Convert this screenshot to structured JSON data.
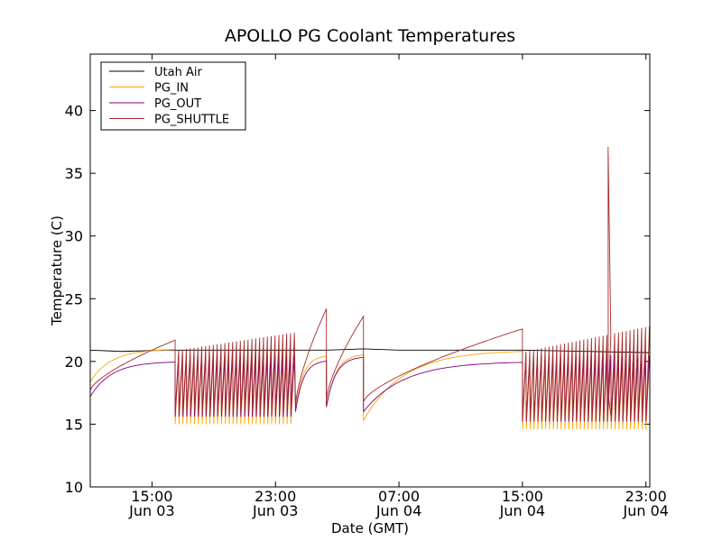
{
  "chart_data": {
    "type": "line",
    "title": "APOLLO PG Coolant Temperatures",
    "xlabel": "Date (GMT)",
    "ylabel": "Temperature (C)",
    "x_unit": "hours since Jun 03 00:00 GMT",
    "xlim": [
      11,
      47.25
    ],
    "ylim": [
      10,
      44.5
    ],
    "y_ticks": [
      10,
      15,
      20,
      25,
      30,
      35,
      40
    ],
    "x_ticks": [
      {
        "x": 15,
        "label1": "15:00",
        "label2": "Jun 03"
      },
      {
        "x": 23,
        "label1": "23:00",
        "label2": "Jun 03"
      },
      {
        "x": 31,
        "label1": "07:00",
        "label2": "Jun 04"
      },
      {
        "x": 39,
        "label1": "15:00",
        "label2": "Jun 04"
      },
      {
        "x": 47,
        "label1": "23:00",
        "label2": "Jun 04"
      }
    ],
    "legend_position": "top-left",
    "series": [
      {
        "name": "Utah Air",
        "color": "#000000"
      },
      {
        "name": "PG_IN",
        "color": "#ffa500"
      },
      {
        "name": "PG_OUT",
        "color": "#800080"
      },
      {
        "name": "PG_SHUTTLE",
        "color": "#a52a2a"
      }
    ],
    "phases": [
      {
        "start": 11.0,
        "end": 16.5,
        "mode": "warmup",
        "in_from": 18.4,
        "in_to": 21.0,
        "out_from": 17.2,
        "out_to": 20.0,
        "sh_from": 17.7,
        "sh_to": 21.7
      },
      {
        "start": 16.5,
        "end": 24.3,
        "mode": "cycle",
        "in_low": 15.0,
        "in_high": 20.6,
        "out_low": 15.6,
        "out_high": 20.5,
        "sh_low": 16.0,
        "sh_peak_from": 20.9,
        "sh_peak_to": 22.3
      },
      {
        "start": 24.3,
        "end": 26.3,
        "mode": "warmup",
        "in_from": 16.2,
        "in_to": 20.5,
        "out_from": 16.0,
        "out_to": 20.1,
        "sh_from": 16.5,
        "sh_to": 24.2
      },
      {
        "start": 26.3,
        "end": 28.7,
        "mode": "warmup",
        "in_from": 16.3,
        "in_to": 20.6,
        "out_from": 16.4,
        "out_to": 20.4,
        "sh_from": 16.9,
        "sh_to": 23.6
      },
      {
        "start": 28.7,
        "end": 39.0,
        "mode": "warmup",
        "in_from": 15.3,
        "in_to": 20.9,
        "out_from": 16.0,
        "out_to": 20.0,
        "sh_from": 16.8,
        "sh_to": 22.6
      },
      {
        "start": 39.0,
        "end": 47.25,
        "mode": "cycle",
        "in_low": 14.6,
        "in_high": 20.3,
        "out_low": 15.2,
        "out_high": 20.5,
        "sh_low": 15.4,
        "sh_peak_from": 20.8,
        "sh_peak_to": 22.8
      }
    ],
    "utah_air": [
      [
        11,
        20.9
      ],
      [
        13,
        20.8
      ],
      [
        16,
        20.9
      ],
      [
        24.3,
        20.9
      ],
      [
        26.3,
        20.9
      ],
      [
        28.7,
        21.0
      ],
      [
        31,
        20.9
      ],
      [
        39,
        20.9
      ],
      [
        47.25,
        20.7
      ]
    ],
    "spike": {
      "x": 44.55,
      "y": 37.1
    }
  }
}
